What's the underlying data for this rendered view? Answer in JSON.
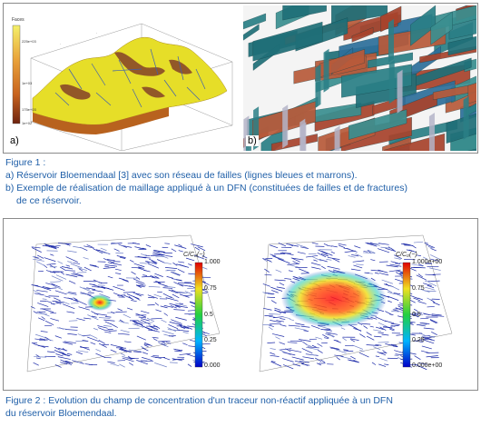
{
  "figure1": {
    "panel_a_label": "a)",
    "panel_b_label": "b)",
    "caption_title": "Figure 1 :",
    "caption_a": "a) Réservoir Bloemendaal [3] avec son réseau de failles (lignes bleues et marrons).",
    "caption_b_line1": "b) Exemple de réalisation de maillage appliqué à un DFN (constituées de failles et de fractures)",
    "caption_b_line2": "de ce réservoir.",
    "legend_title": "Faces",
    "legend_ticks": [
      "225e+03",
      "1e+03",
      "175e+03",
      "1e+02"
    ],
    "colors": {
      "surface": "#e8e22a",
      "fault_brown": "#8b4a2a",
      "fault_blue": "#4a67b0",
      "legend_top": "#f2ee5a",
      "legend_bottom": "#7a2a10"
    }
  },
  "figure2": {
    "left_colorbar": {
      "title": "C/C₀(−)",
      "ticks": [
        "1.000",
        "0.75",
        "0.5",
        "0.25",
        "0.000"
      ]
    },
    "right_colorbar": {
      "title": "C/C₀(−)",
      "ticks": [
        "1.000e+00",
        "0.75",
        "0.5",
        "0.25",
        "0.000e+00"
      ]
    },
    "caption_line1": "Figure 2 : Evolution du champ de concentration d'un traceur non-réactif appliquée à un DFN",
    "caption_line2": "du réservoir Bloemendaal."
  }
}
